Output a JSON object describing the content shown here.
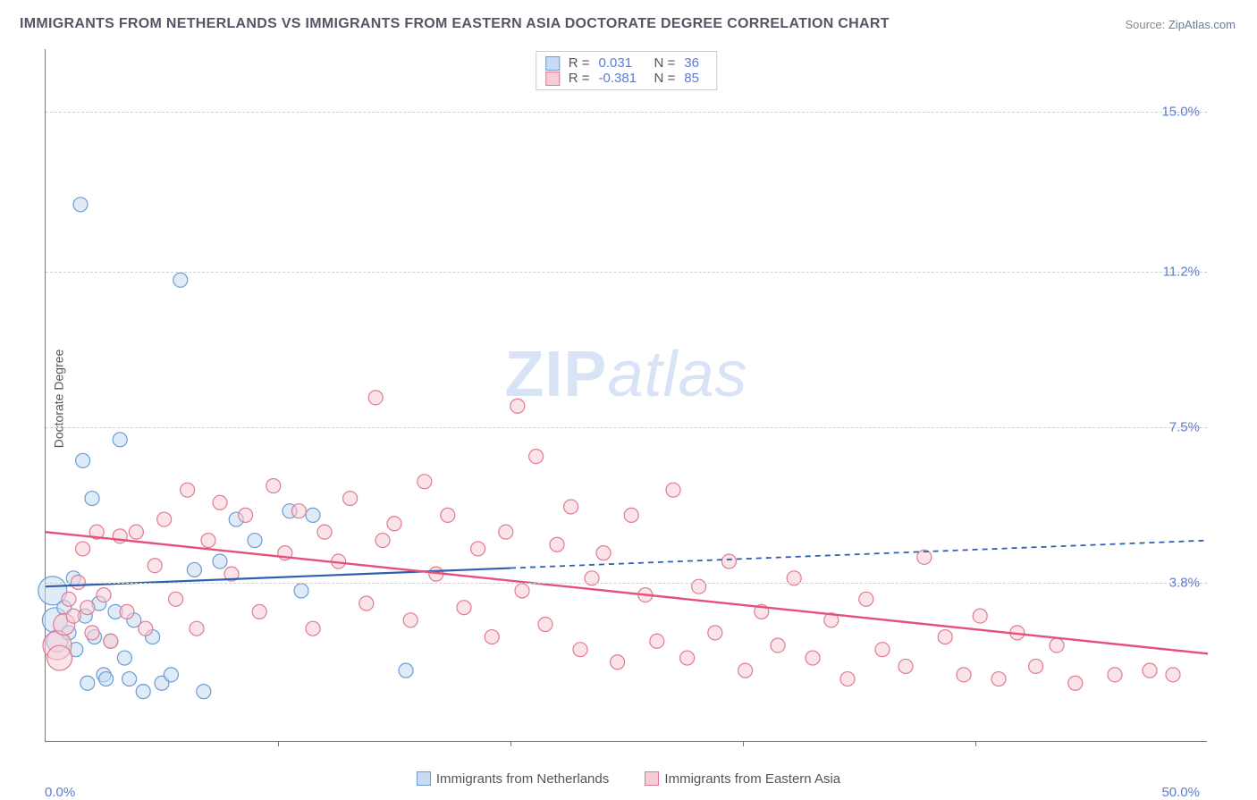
{
  "title": "IMMIGRANTS FROM NETHERLANDS VS IMMIGRANTS FROM EASTERN ASIA DOCTORATE DEGREE CORRELATION CHART",
  "source_prefix": "Source: ",
  "source_name": "ZipAtlas.com",
  "ylabel": "Doctorate Degree",
  "watermark_bold": "ZIP",
  "watermark_light": "atlas",
  "chart": {
    "type": "scatter",
    "background_color": "#ffffff",
    "grid_color": "#d0d0d0",
    "axis_color": "#777777",
    "label_color": "#5b7bd4",
    "xlim": [
      0,
      50
    ],
    "ylim": [
      0,
      16.5
    ],
    "xticks": [
      10,
      20,
      30,
      40
    ],
    "yticks": [
      3.8,
      7.5,
      11.2,
      15.0
    ],
    "xtick_labels": {
      "min": "0.0%",
      "max": "50.0%"
    },
    "ytick_labels": [
      "3.8%",
      "7.5%",
      "11.2%",
      "15.0%"
    ],
    "series": [
      {
        "name": "Immigrants from Netherlands",
        "fill": "#c7dbf2",
        "stroke": "#6a9cd4",
        "fill_opacity": 0.55,
        "marker_r": 8,
        "R": "0.031",
        "N": "36",
        "trend": {
          "y_at_xmin": 3.7,
          "y_at_xmax": 4.8,
          "solid_until_x": 20,
          "stroke": "#2d5fb0",
          "width": 2.2
        },
        "points": [
          {
            "x": 0.3,
            "y": 3.6,
            "r": 16
          },
          {
            "x": 0.4,
            "y": 2.9,
            "r": 14
          },
          {
            "x": 0.5,
            "y": 2.4,
            "r": 12
          },
          {
            "x": 0.8,
            "y": 3.2
          },
          {
            "x": 1.0,
            "y": 2.6
          },
          {
            "x": 1.2,
            "y": 3.9
          },
          {
            "x": 1.3,
            "y": 2.2
          },
          {
            "x": 1.5,
            "y": 12.8
          },
          {
            "x": 1.6,
            "y": 6.7
          },
          {
            "x": 1.7,
            "y": 3.0
          },
          {
            "x": 1.8,
            "y": 1.4
          },
          {
            "x": 2.0,
            "y": 5.8
          },
          {
            "x": 2.1,
            "y": 2.5
          },
          {
            "x": 2.3,
            "y": 3.3
          },
          {
            "x": 2.5,
            "y": 1.6
          },
          {
            "x": 2.6,
            "y": 1.5
          },
          {
            "x": 2.8,
            "y": 2.4
          },
          {
            "x": 3.0,
            "y": 3.1
          },
          {
            "x": 3.2,
            "y": 7.2
          },
          {
            "x": 3.4,
            "y": 2.0
          },
          {
            "x": 3.6,
            "y": 1.5
          },
          {
            "x": 3.8,
            "y": 2.9
          },
          {
            "x": 4.2,
            "y": 1.2
          },
          {
            "x": 4.6,
            "y": 2.5
          },
          {
            "x": 5.0,
            "y": 1.4
          },
          {
            "x": 5.4,
            "y": 1.6
          },
          {
            "x": 5.8,
            "y": 11.0
          },
          {
            "x": 6.4,
            "y": 4.1
          },
          {
            "x": 6.8,
            "y": 1.2
          },
          {
            "x": 7.5,
            "y": 4.3
          },
          {
            "x": 8.2,
            "y": 5.3
          },
          {
            "x": 9.0,
            "y": 4.8
          },
          {
            "x": 10.5,
            "y": 5.5
          },
          {
            "x": 11.0,
            "y": 3.6
          },
          {
            "x": 11.5,
            "y": 5.4
          },
          {
            "x": 15.5,
            "y": 1.7
          }
        ]
      },
      {
        "name": "Immigrants from Eastern Asia",
        "fill": "#f6cdd6",
        "stroke": "#e07a94",
        "fill_opacity": 0.55,
        "marker_r": 8,
        "R": "-0.381",
        "N": "85",
        "trend": {
          "y_at_xmin": 5.0,
          "y_at_xmax": 2.1,
          "solid_until_x": 50,
          "stroke": "#e5517a",
          "width": 2.4
        },
        "points": [
          {
            "x": 0.5,
            "y": 2.3,
            "r": 16
          },
          {
            "x": 0.6,
            "y": 2.0,
            "r": 14
          },
          {
            "x": 0.8,
            "y": 2.8,
            "r": 12
          },
          {
            "x": 1.0,
            "y": 3.4
          },
          {
            "x": 1.2,
            "y": 3.0
          },
          {
            "x": 1.4,
            "y": 3.8
          },
          {
            "x": 1.6,
            "y": 4.6
          },
          {
            "x": 1.8,
            "y": 3.2
          },
          {
            "x": 2.0,
            "y": 2.6
          },
          {
            "x": 2.2,
            "y": 5.0
          },
          {
            "x": 2.5,
            "y": 3.5
          },
          {
            "x": 2.8,
            "y": 2.4
          },
          {
            "x": 3.2,
            "y": 4.9
          },
          {
            "x": 3.5,
            "y": 3.1
          },
          {
            "x": 3.9,
            "y": 5.0
          },
          {
            "x": 4.3,
            "y": 2.7
          },
          {
            "x": 4.7,
            "y": 4.2
          },
          {
            "x": 5.1,
            "y": 5.3
          },
          {
            "x": 5.6,
            "y": 3.4
          },
          {
            "x": 6.1,
            "y": 6.0
          },
          {
            "x": 6.5,
            "y": 2.7
          },
          {
            "x": 7.0,
            "y": 4.8
          },
          {
            "x": 7.5,
            "y": 5.7
          },
          {
            "x": 8.0,
            "y": 4.0
          },
          {
            "x": 8.6,
            "y": 5.4
          },
          {
            "x": 9.2,
            "y": 3.1
          },
          {
            "x": 9.8,
            "y": 6.1
          },
          {
            "x": 10.3,
            "y": 4.5
          },
          {
            "x": 10.9,
            "y": 5.5
          },
          {
            "x": 11.5,
            "y": 2.7
          },
          {
            "x": 12.0,
            "y": 5.0
          },
          {
            "x": 12.6,
            "y": 4.3
          },
          {
            "x": 13.1,
            "y": 5.8
          },
          {
            "x": 13.8,
            "y": 3.3
          },
          {
            "x": 14.2,
            "y": 8.2
          },
          {
            "x": 14.5,
            "y": 4.8
          },
          {
            "x": 15.0,
            "y": 5.2
          },
          {
            "x": 15.7,
            "y": 2.9
          },
          {
            "x": 16.3,
            "y": 6.2
          },
          {
            "x": 16.8,
            "y": 4.0
          },
          {
            "x": 17.3,
            "y": 5.4
          },
          {
            "x": 18.0,
            "y": 3.2
          },
          {
            "x": 18.6,
            "y": 4.6
          },
          {
            "x": 19.2,
            "y": 2.5
          },
          {
            "x": 19.8,
            "y": 5.0
          },
          {
            "x": 20.3,
            "y": 8.0
          },
          {
            "x": 20.5,
            "y": 3.6
          },
          {
            "x": 21.1,
            "y": 6.8
          },
          {
            "x": 21.5,
            "y": 2.8
          },
          {
            "x": 22.0,
            "y": 4.7
          },
          {
            "x": 22.6,
            "y": 5.6
          },
          {
            "x": 23.0,
            "y": 2.2
          },
          {
            "x": 23.5,
            "y": 3.9
          },
          {
            "x": 24.0,
            "y": 4.5
          },
          {
            "x": 24.6,
            "y": 1.9
          },
          {
            "x": 25.2,
            "y": 5.4
          },
          {
            "x": 25.8,
            "y": 3.5
          },
          {
            "x": 26.3,
            "y": 2.4
          },
          {
            "x": 27.0,
            "y": 6.0
          },
          {
            "x": 27.6,
            "y": 2.0
          },
          {
            "x": 28.1,
            "y": 3.7
          },
          {
            "x": 28.8,
            "y": 2.6
          },
          {
            "x": 29.4,
            "y": 4.3
          },
          {
            "x": 30.1,
            "y": 1.7
          },
          {
            "x": 30.8,
            "y": 3.1
          },
          {
            "x": 31.5,
            "y": 2.3
          },
          {
            "x": 32.2,
            "y": 3.9
          },
          {
            "x": 33.0,
            "y": 2.0
          },
          {
            "x": 33.8,
            "y": 2.9
          },
          {
            "x": 34.5,
            "y": 1.5
          },
          {
            "x": 35.3,
            "y": 3.4
          },
          {
            "x": 36.0,
            "y": 2.2
          },
          {
            "x": 37.0,
            "y": 1.8
          },
          {
            "x": 37.8,
            "y": 4.4
          },
          {
            "x": 38.7,
            "y": 2.5
          },
          {
            "x": 39.5,
            "y": 1.6
          },
          {
            "x": 40.2,
            "y": 3.0
          },
          {
            "x": 41.0,
            "y": 1.5
          },
          {
            "x": 41.8,
            "y": 2.6
          },
          {
            "x": 42.6,
            "y": 1.8
          },
          {
            "x": 43.5,
            "y": 2.3
          },
          {
            "x": 44.3,
            "y": 1.4
          },
          {
            "x": 46.0,
            "y": 1.6
          },
          {
            "x": 47.5,
            "y": 1.7
          },
          {
            "x": 48.5,
            "y": 1.6
          }
        ]
      }
    ]
  },
  "legend": {
    "r_prefix": "R =",
    "n_prefix": "N ="
  }
}
